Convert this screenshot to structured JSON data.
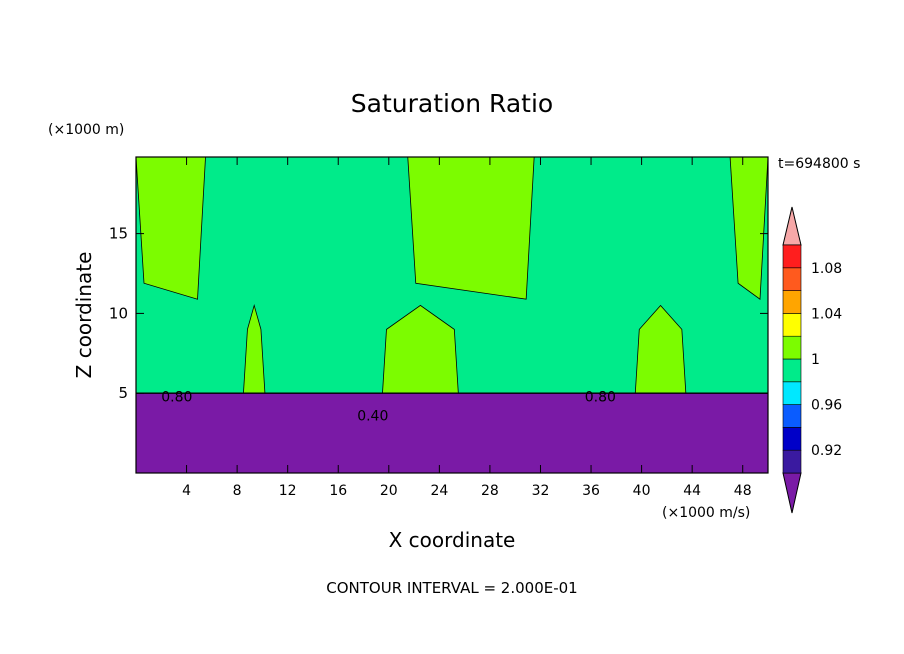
{
  "chart_data": {
    "type": "heatmap",
    "title": "Saturation Ratio",
    "xlabel": "X coordinate",
    "ylabel": "Z coordinate",
    "x_unit_label": "(×1000 m/s)",
    "y_unit_label": "(×1000 m)",
    "time_label": "t=694800 s",
    "footer": "CONTOUR INTERVAL = 2.000E-01",
    "xlim": [
      0,
      50
    ],
    "ylim": [
      0,
      19.8
    ],
    "x_ticks": [
      4,
      8,
      12,
      16,
      20,
      24,
      28,
      32,
      36,
      40,
      44,
      48
    ],
    "y_ticks": [
      5,
      10,
      15
    ],
    "colorbar": {
      "levels": [
        0.92,
        0.96,
        1,
        1.04,
        1.08
      ],
      "tick_labels": [
        "0.92",
        "0.96",
        "1",
        "1.04",
        "1.08"
      ],
      "band_colors": [
        "#3a1aa0",
        "#0000c8",
        "#0a5cff",
        "#00e8ff",
        "#00eb8a",
        "#7cfc00",
        "#ffff00",
        "#ffa500",
        "#ff5a1e",
        "#ff1e1e"
      ],
      "lower_extend_color": "#7a1aa6",
      "upper_extend_color": "#f7a8a8"
    },
    "regions": {
      "background_color": "#00eb8a",
      "dry_layer_color": "#7a1aa6",
      "dry_layer_top_z": 5,
      "supersaturated_color": "#7cfc00",
      "column_ranges_x": [
        [
          8.5,
          10.2
        ],
        [
          19.5,
          25.5
        ],
        [
          39.5,
          43.5
        ]
      ],
      "top_region_ranges_x": [
        [
          0,
          5.5
        ],
        [
          21.5,
          31.5
        ],
        [
          47,
          50
        ]
      ]
    },
    "contour_labels": [
      {
        "text": "0.80",
        "x": 2,
        "z": 4.8
      },
      {
        "text": "0.80",
        "x": 35.5,
        "z": 4.8
      },
      {
        "text": "0.40",
        "x": 17.5,
        "z": 3.6
      }
    ]
  }
}
